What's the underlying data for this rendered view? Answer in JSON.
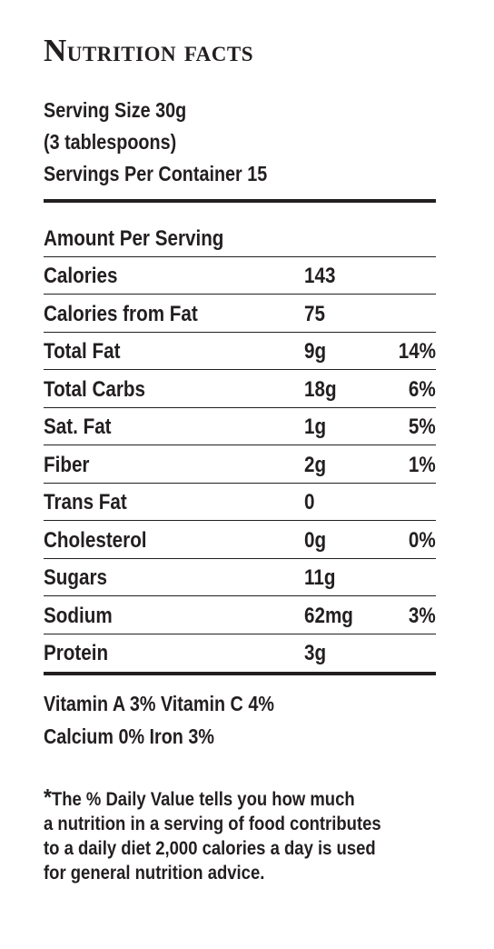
{
  "title": {
    "first": "N",
    "rest": "utrition facts"
  },
  "serving": {
    "size": "Serving Size 30g",
    "size_detail": "(3 tablespoons)",
    "per_container": "Servings Per Container 15"
  },
  "amount_header": "Amount Per Serving",
  "rows": [
    {
      "label": "Calories",
      "amount": "143",
      "dv": ""
    },
    {
      "label": "Calories from Fat",
      "amount": "75",
      "dv": ""
    },
    {
      "label": "Total Fat",
      "amount": "9g",
      "dv": "14%"
    },
    {
      "label": "Total Carbs",
      "amount": "18g",
      "dv": "6%"
    },
    {
      "label": "Sat. Fat",
      "amount": "1g",
      "dv": "5%"
    },
    {
      "label": "Fiber",
      "amount": "2g",
      "dv": "1%"
    },
    {
      "label": "Trans Fat",
      "amount": "0",
      "dv": ""
    },
    {
      "label": "Cholesterol",
      "amount": "0g",
      "dv": "0%"
    },
    {
      "label": "Sugars",
      "amount": "11g",
      "dv": ""
    },
    {
      "label": "Sodium",
      "amount": "62mg",
      "dv": "3%"
    },
    {
      "label": "Protein",
      "amount": "3g",
      "dv": ""
    }
  ],
  "vitamins": {
    "line1": "Vitamin A  3% Vitamin C  4%",
    "line2": "Calcium  0%  Iron  3%"
  },
  "footnote": {
    "star": "*",
    "lines": [
      "The % Daily Value tells you how much",
      "a nutrition in a serving of food contributes",
      "to a daily diet 2,000 calories a day is used",
      "for general nutrition advice."
    ]
  }
}
